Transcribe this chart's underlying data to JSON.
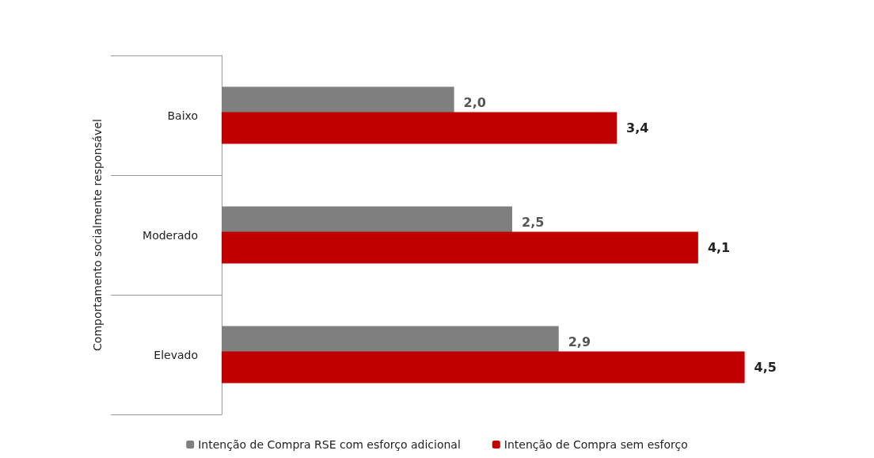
{
  "chart_data": {
    "type": "bar",
    "orientation": "horizontal",
    "ylabel": "Comportamento socialmente responsável",
    "categories": [
      "Baixo",
      "Moderado",
      "Elevado"
    ],
    "series": [
      {
        "name": "Intenção de Compra RSE com esforço adicional",
        "color": "#7f7f7f",
        "values": [
          2.0,
          2.5,
          2.9
        ],
        "value_labels": [
          "2,0",
          "2,5",
          "2,9"
        ]
      },
      {
        "name": "Intenção de Compra sem esforço",
        "color": "#c00000",
        "values": [
          3.4,
          4.1,
          4.5
        ],
        "value_labels": [
          "3,4",
          "4,1",
          "4,5"
        ]
      }
    ],
    "legend": "bottom",
    "tick_labels": "y"
  }
}
